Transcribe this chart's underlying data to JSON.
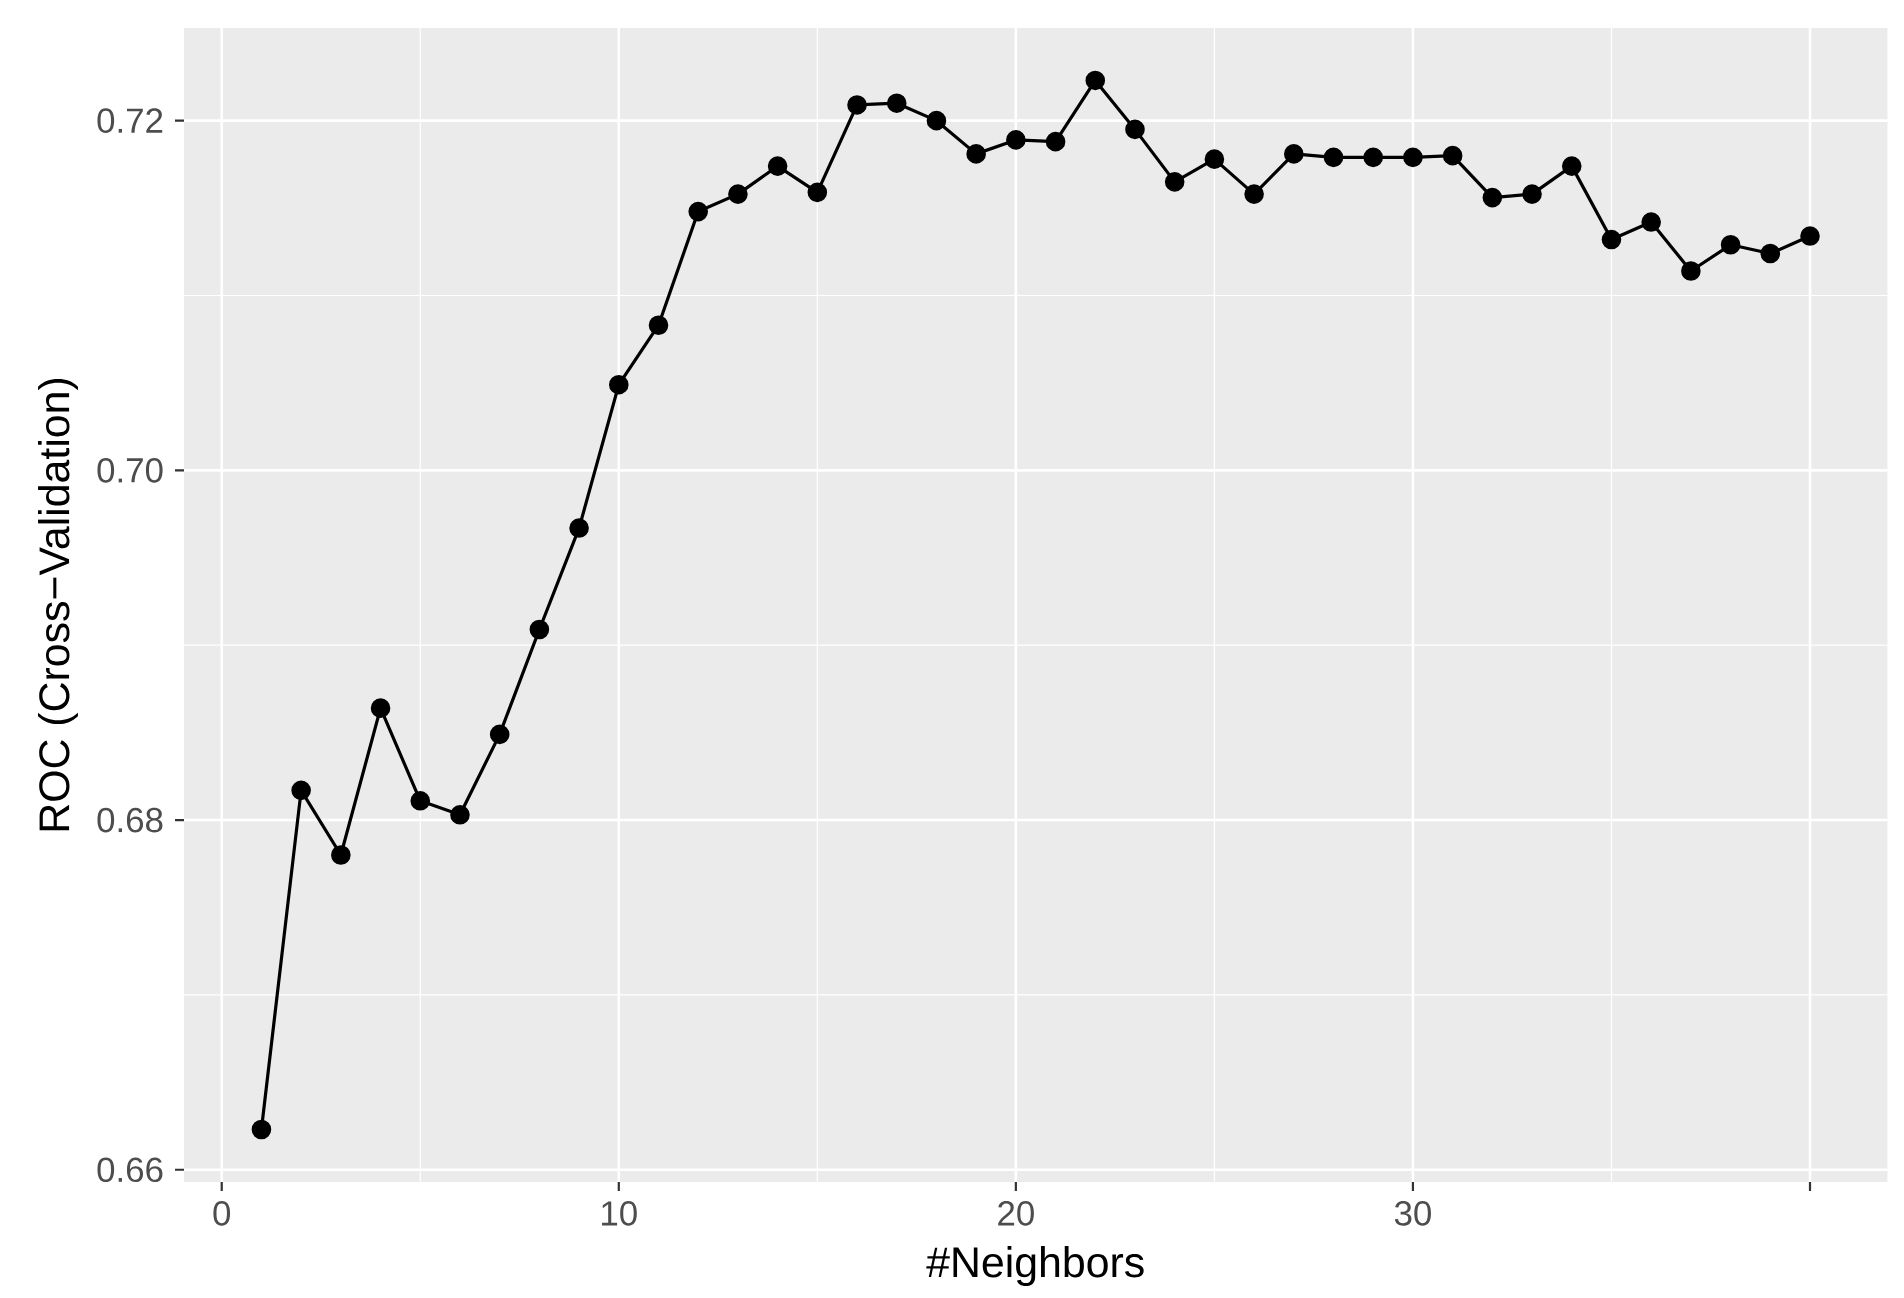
{
  "chart_data": {
    "type": "line",
    "xlabel": "#Neighbors",
    "ylabel": "ROC (Cross−Validation)",
    "x": [
      1,
      2,
      3,
      4,
      5,
      6,
      7,
      8,
      9,
      10,
      11,
      12,
      13,
      14,
      15,
      16,
      17,
      18,
      19,
      20,
      21,
      22,
      23,
      24,
      25,
      26,
      27,
      28,
      29,
      30,
      31,
      32,
      33,
      34,
      35,
      36,
      37,
      38,
      39,
      40
    ],
    "series": [
      {
        "color": "#000000",
        "values": [
          0.6623,
          0.6817,
          0.678,
          0.6864,
          0.6811,
          0.6803,
          0.6849,
          0.6909,
          0.6967,
          0.7049,
          0.7083,
          0.7148,
          0.7158,
          0.7174,
          0.7159,
          0.7209,
          0.721,
          0.72,
          0.7181,
          0.7189,
          0.7188,
          0.7223,
          0.7195,
          0.7165,
          0.7178,
          0.7158,
          0.7181,
          0.7179,
          0.7179,
          0.7179,
          0.718,
          0.7156,
          0.7158,
          0.7174,
          0.7132,
          0.7142,
          0.7114,
          0.7129,
          0.7124,
          0.7134
        ]
      }
    ],
    "xlim": [
      -0.95,
      41.95
    ],
    "ylim": [
      0.6593,
      0.7253
    ],
    "xticks": [
      0,
      10,
      20,
      30,
      {
        "value": 40,
        "label": null
      }
    ],
    "yticks": [
      0.66,
      0.68,
      {
        "value": 0.7,
        "label": "0.70"
      },
      0.72
    ],
    "grid": true,
    "marker": "circle",
    "line_style": "solid"
  }
}
